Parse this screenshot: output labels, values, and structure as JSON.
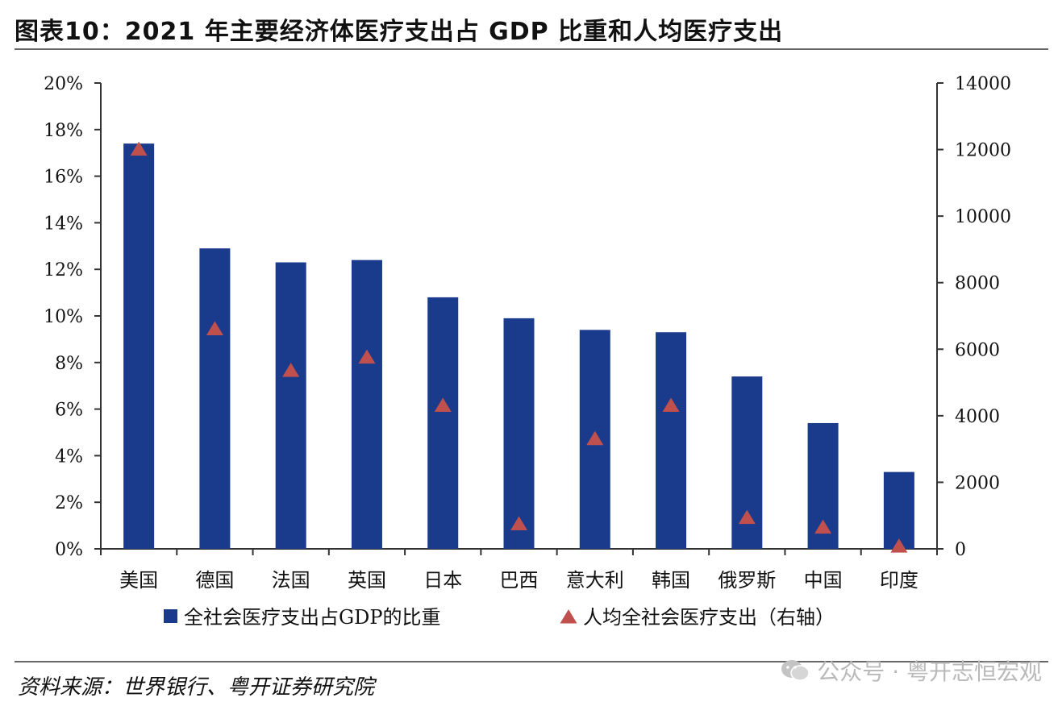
{
  "title": "图表10：2021 年主要经济体医疗支出占 GDP 比重和人均医疗支出",
  "source": "资料来源：世界银行、粤开证券研究院",
  "watermark": {
    "text": "公众号 · 粤开志恒宏观",
    "icon": "wechat-icon"
  },
  "colors": {
    "bar": "#1a3a8c",
    "marker": "#c0504d",
    "axis": "#333333"
  },
  "chart_data": {
    "type": "bar",
    "categories": [
      "美国",
      "德国",
      "法国",
      "英国",
      "日本",
      "巴西",
      "意大利",
      "韩国",
      "俄罗斯",
      "中国",
      "印度"
    ],
    "series": [
      {
        "name": "全社会医疗支出占GDP的比重",
        "type": "bar",
        "axis": "left",
        "values": [
          17.4,
          12.9,
          12.3,
          12.4,
          10.8,
          9.9,
          9.4,
          9.3,
          7.4,
          5.4,
          3.3
        ]
      },
      {
        "name": "人均全社会医疗支出（右轴）",
        "type": "scatter",
        "marker": "triangle",
        "axis": "right",
        "values": [
          12000,
          6600,
          5350,
          5750,
          4300,
          740,
          3300,
          4300,
          930,
          640,
          70
        ]
      }
    ],
    "y_left": {
      "ylim": [
        0,
        20
      ],
      "ticks": [
        "0%",
        "2%",
        "4%",
        "6%",
        "8%",
        "10%",
        "12%",
        "14%",
        "16%",
        "18%",
        "20%"
      ]
    },
    "y_right": {
      "ylim": [
        0,
        14000
      ],
      "ticks": [
        "0",
        "2000",
        "4000",
        "6000",
        "8000",
        "10000",
        "12000",
        "14000"
      ]
    },
    "grid": false,
    "legend_position": "bottom"
  }
}
